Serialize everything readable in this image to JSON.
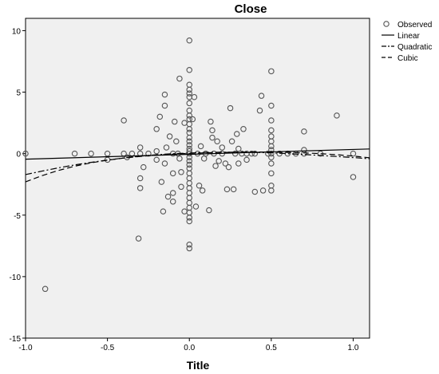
{
  "chart_data": {
    "type": "scatter",
    "title": "Close",
    "xlabel": "Title",
    "ylabel": "",
    "xlim": [
      -1.0,
      1.1
    ],
    "ylim": [
      -15,
      11
    ],
    "x_ticks": [
      -1.0,
      -0.5,
      0.0,
      0.5,
      1.0
    ],
    "x_tick_labels": [
      "-1.0",
      "-0.5",
      "0.0",
      "0.5",
      "1.0"
    ],
    "y_ticks": [
      10,
      5,
      0,
      -5,
      -10,
      -15
    ],
    "y_tick_labels": [
      "10",
      "5",
      "0",
      "-5",
      "-10",
      "-15"
    ],
    "grid": false,
    "legend": {
      "placement": "right",
      "entries": [
        {
          "name": "Observed",
          "marker": "circle"
        },
        {
          "name": "Linear",
          "style": "solid"
        },
        {
          "name": "Quadratic",
          "style": "dash-dot"
        },
        {
          "name": "Cubic",
          "style": "dashed"
        }
      ]
    },
    "colors": {
      "plot_background": "#f0f0f0",
      "marker_stroke": "#555555",
      "line": "#000000"
    },
    "observed": [
      [
        -1.0,
        0.0
      ],
      [
        -0.88,
        -11.0
      ],
      [
        -0.7,
        0.0
      ],
      [
        -0.6,
        0.0
      ],
      [
        -0.5,
        0.0
      ],
      [
        -0.5,
        -0.5
      ],
      [
        -0.4,
        2.7
      ],
      [
        -0.4,
        0.0
      ],
      [
        -0.38,
        -0.3
      ],
      [
        -0.35,
        0.0
      ],
      [
        -0.3,
        0.5
      ],
      [
        -0.3,
        0.0
      ],
      [
        -0.3,
        -2.0
      ],
      [
        -0.3,
        -2.8
      ],
      [
        -0.31,
        -6.9
      ],
      [
        -0.28,
        -1.1
      ],
      [
        -0.25,
        0.0
      ],
      [
        -0.2,
        0.2
      ],
      [
        -0.2,
        -0.5
      ],
      [
        -0.2,
        2.0
      ],
      [
        -0.18,
        3.0
      ],
      [
        -0.17,
        -2.3
      ],
      [
        -0.16,
        -4.7
      ],
      [
        -0.15,
        4.8
      ],
      [
        -0.15,
        3.9
      ],
      [
        -0.15,
        -0.8
      ],
      [
        -0.14,
        0.5
      ],
      [
        -0.13,
        -3.5
      ],
      [
        -0.12,
        1.4
      ],
      [
        -0.1,
        0.0
      ],
      [
        -0.1,
        -1.6
      ],
      [
        -0.1,
        -3.2
      ],
      [
        -0.1,
        -3.9
      ],
      [
        -0.09,
        2.6
      ],
      [
        -0.08,
        1.0
      ],
      [
        -0.07,
        0.0
      ],
      [
        -0.06,
        -0.4
      ],
      [
        -0.05,
        -1.5
      ],
      [
        -0.05,
        -2.7
      ],
      [
        -0.06,
        6.1
      ],
      [
        -0.03,
        -4.7
      ],
      [
        -0.03,
        2.5
      ],
      [
        0.0,
        9.2
      ],
      [
        0.0,
        6.8
      ],
      [
        0.0,
        5.6
      ],
      [
        0.0,
        5.2
      ],
      [
        0.0,
        4.9
      ],
      [
        0.0,
        4.6
      ],
      [
        0.0,
        4.1
      ],
      [
        0.0,
        3.5
      ],
      [
        0.0,
        3.1
      ],
      [
        0.0,
        2.8
      ],
      [
        0.0,
        2.4
      ],
      [
        0.0,
        2.0
      ],
      [
        0.0,
        1.7
      ],
      [
        0.0,
        1.3
      ],
      [
        0.0,
        1.0
      ],
      [
        0.0,
        0.7
      ],
      [
        0.0,
        0.4
      ],
      [
        0.0,
        0.2
      ],
      [
        0.0,
        0.0
      ],
      [
        0.0,
        -0.3
      ],
      [
        0.0,
        -0.6
      ],
      [
        0.0,
        -0.9
      ],
      [
        0.0,
        -1.2
      ],
      [
        0.0,
        -1.6
      ],
      [
        0.0,
        -2.0
      ],
      [
        0.0,
        -2.4
      ],
      [
        0.0,
        -2.8
      ],
      [
        0.0,
        -3.2
      ],
      [
        0.0,
        -3.6
      ],
      [
        0.0,
        -4.0
      ],
      [
        0.0,
        -4.4
      ],
      [
        0.0,
        -4.8
      ],
      [
        0.0,
        -5.2
      ],
      [
        0.0,
        -5.5
      ],
      [
        0.0,
        -7.4
      ],
      [
        0.0,
        -7.7
      ],
      [
        0.02,
        2.8
      ],
      [
        0.03,
        4.6
      ],
      [
        0.04,
        -4.3
      ],
      [
        0.05,
        0.0
      ],
      [
        0.06,
        -2.6
      ],
      [
        0.07,
        0.6
      ],
      [
        0.08,
        -3.0
      ],
      [
        0.09,
        -0.4
      ],
      [
        0.1,
        0.0
      ],
      [
        0.12,
        -4.6
      ],
      [
        0.13,
        2.6
      ],
      [
        0.14,
        1.9
      ],
      [
        0.14,
        1.3
      ],
      [
        0.15,
        0.0
      ],
      [
        0.16,
        -1.0
      ],
      [
        0.17,
        1.0
      ],
      [
        0.18,
        -0.6
      ],
      [
        0.2,
        0.5
      ],
      [
        0.2,
        0.0
      ],
      [
        0.22,
        -0.8
      ],
      [
        0.23,
        -2.9
      ],
      [
        0.24,
        -1.1
      ],
      [
        0.25,
        3.7
      ],
      [
        0.26,
        1.0
      ],
      [
        0.27,
        -2.9
      ],
      [
        0.28,
        0.0
      ],
      [
        0.29,
        1.6
      ],
      [
        0.3,
        -0.8
      ],
      [
        0.3,
        0.4
      ],
      [
        0.32,
        0.0
      ],
      [
        0.33,
        2.0
      ],
      [
        0.35,
        0.0
      ],
      [
        0.35,
        -0.5
      ],
      [
        0.38,
        0.0
      ],
      [
        0.4,
        -3.1
      ],
      [
        0.4,
        0.0
      ],
      [
        0.43,
        3.5
      ],
      [
        0.44,
        4.7
      ],
      [
        0.45,
        -3.0
      ],
      [
        0.48,
        0.0
      ],
      [
        0.5,
        6.7
      ],
      [
        0.5,
        3.9
      ],
      [
        0.5,
        2.7
      ],
      [
        0.5,
        1.9
      ],
      [
        0.5,
        1.4
      ],
      [
        0.5,
        1.0
      ],
      [
        0.5,
        0.6
      ],
      [
        0.5,
        0.3
      ],
      [
        0.5,
        0.0
      ],
      [
        0.5,
        -0.3
      ],
      [
        0.5,
        -0.8
      ],
      [
        0.5,
        -1.6
      ],
      [
        0.5,
        -2.6
      ],
      [
        0.5,
        -3.0
      ],
      [
        0.55,
        0.0
      ],
      [
        0.6,
        0.0
      ],
      [
        0.65,
        0.0
      ],
      [
        0.7,
        1.8
      ],
      [
        0.7,
        0.3
      ],
      [
        0.7,
        0.0
      ],
      [
        0.8,
        0.0
      ],
      [
        0.9,
        3.1
      ],
      [
        1.0,
        0.0
      ],
      [
        1.0,
        -1.9
      ]
    ],
    "curves": {
      "linear": {
        "x": [
          -1.0,
          1.1
        ],
        "y": [
          -0.45,
          0.38
        ]
      },
      "quadratic": {
        "x": [
          -1.0,
          -0.9,
          -0.8,
          -0.7,
          -0.6,
          -0.5,
          -0.4,
          -0.3,
          -0.2,
          -0.1,
          0.0,
          0.1,
          0.2,
          0.3,
          0.4,
          0.5,
          0.6,
          0.7,
          0.8,
          0.9,
          1.0,
          1.1
        ],
        "y": [
          -1.7,
          -1.42,
          -1.16,
          -0.92,
          -0.71,
          -0.52,
          -0.35,
          -0.21,
          -0.09,
          0.0,
          0.05,
          0.1,
          0.12,
          0.12,
          0.1,
          0.06,
          0.0,
          -0.07,
          -0.15,
          -0.23,
          -0.32,
          -0.42
        ]
      },
      "cubic": {
        "x": [
          -1.0,
          -0.9,
          -0.8,
          -0.7,
          -0.6,
          -0.5,
          -0.4,
          -0.3,
          -0.2,
          -0.1,
          0.0,
          0.1,
          0.2,
          0.3,
          0.4,
          0.5,
          0.6,
          0.7,
          0.8,
          0.9,
          1.0,
          1.1
        ],
        "y": [
          -2.3,
          -1.79,
          -1.37,
          -1.02,
          -0.75,
          -0.53,
          -0.36,
          -0.23,
          -0.12,
          -0.04,
          0.02,
          0.07,
          0.1,
          0.12,
          0.13,
          0.12,
          0.1,
          0.06,
          0.0,
          -0.09,
          -0.2,
          -0.34
        ]
      }
    }
  }
}
